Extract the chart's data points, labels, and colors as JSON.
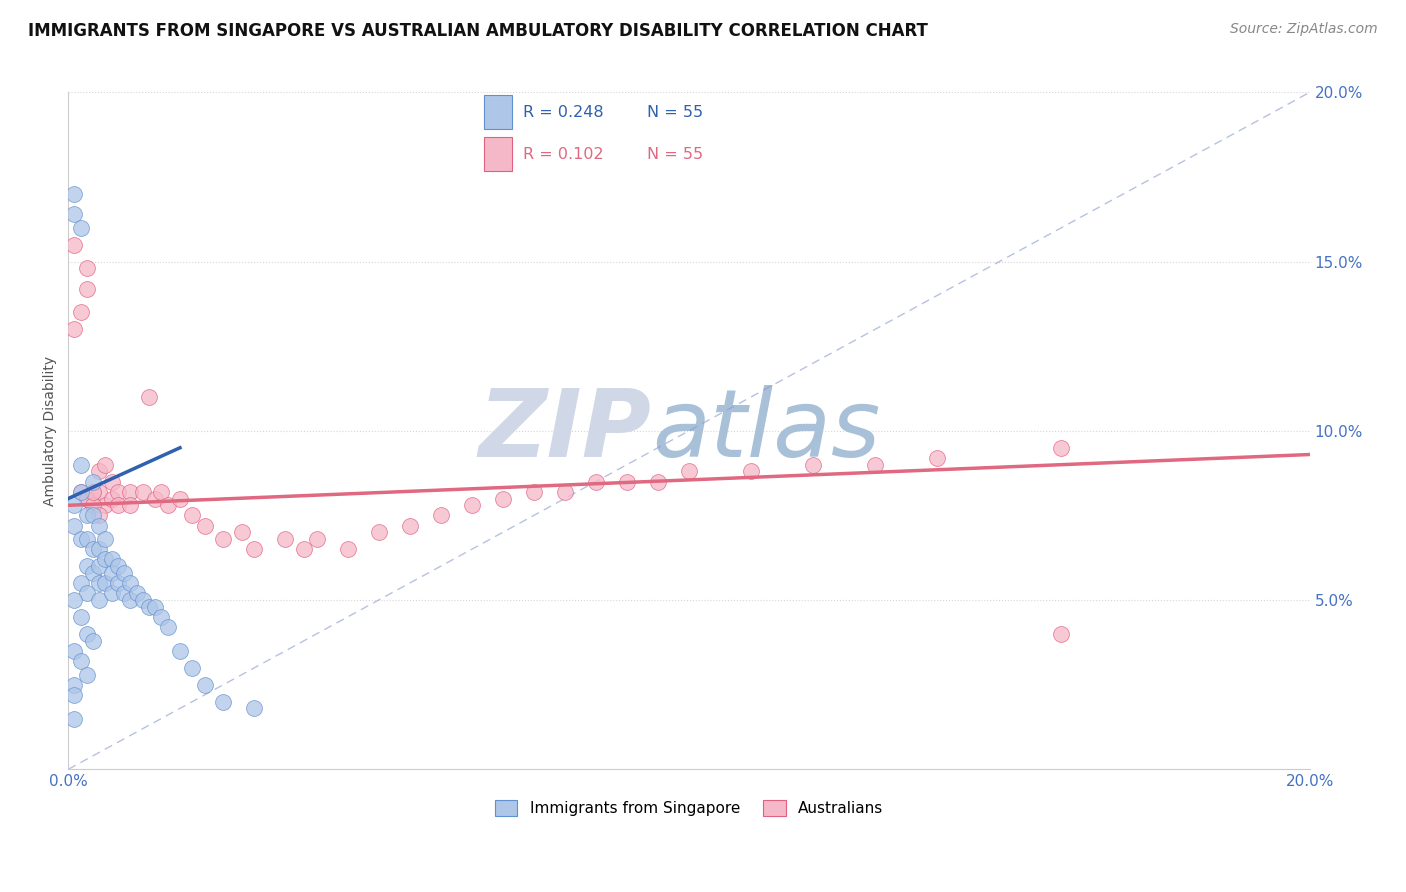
{
  "title": "IMMIGRANTS FROM SINGAPORE VS AUSTRALIAN AMBULATORY DISABILITY CORRELATION CHART",
  "source": "Source: ZipAtlas.com",
  "ylabel": "Ambulatory Disability",
  "xlim": [
    0.0,
    0.2
  ],
  "ylim": [
    0.0,
    0.2
  ],
  "legend_r_blue": "R = 0.248",
  "legend_n_blue": "N = 55",
  "legend_r_pink": "R = 0.102",
  "legend_n_pink": "N = 55",
  "legend_label_blue": "Immigrants from Singapore",
  "legend_label_pink": "Australians",
  "blue_color": "#aec6e8",
  "blue_edge_color": "#6090d0",
  "pink_color": "#f5b8c8",
  "pink_edge_color": "#e06080",
  "trend_blue_color": "#3060b0",
  "trend_pink_color": "#e06880",
  "diagonal_color": "#8899cc",
  "blue_scatter_x": [
    0.001,
    0.001,
    0.001,
    0.001,
    0.002,
    0.002,
    0.002,
    0.002,
    0.002,
    0.003,
    0.003,
    0.003,
    0.003,
    0.004,
    0.004,
    0.004,
    0.004,
    0.005,
    0.005,
    0.005,
    0.005,
    0.005,
    0.006,
    0.006,
    0.006,
    0.007,
    0.007,
    0.007,
    0.008,
    0.008,
    0.009,
    0.009,
    0.01,
    0.01,
    0.011,
    0.012,
    0.013,
    0.014,
    0.015,
    0.016,
    0.018,
    0.02,
    0.022,
    0.025,
    0.03,
    0.001,
    0.002,
    0.003,
    0.004,
    0.001,
    0.002,
    0.003,
    0.001,
    0.001,
    0.001
  ],
  "blue_scatter_y": [
    0.17,
    0.164,
    0.078,
    0.072,
    0.16,
    0.09,
    0.082,
    0.068,
    0.055,
    0.075,
    0.068,
    0.06,
    0.052,
    0.085,
    0.075,
    0.065,
    0.058,
    0.072,
    0.065,
    0.06,
    0.055,
    0.05,
    0.068,
    0.062,
    0.055,
    0.062,
    0.058,
    0.052,
    0.06,
    0.055,
    0.058,
    0.052,
    0.055,
    0.05,
    0.052,
    0.05,
    0.048,
    0.048,
    0.045,
    0.042,
    0.035,
    0.03,
    0.025,
    0.02,
    0.018,
    0.05,
    0.045,
    0.04,
    0.038,
    0.035,
    0.032,
    0.028,
    0.025,
    0.022,
    0.015
  ],
  "pink_scatter_x": [
    0.001,
    0.001,
    0.002,
    0.002,
    0.003,
    0.003,
    0.003,
    0.004,
    0.004,
    0.005,
    0.005,
    0.006,
    0.006,
    0.007,
    0.007,
    0.008,
    0.008,
    0.01,
    0.01,
    0.012,
    0.013,
    0.014,
    0.015,
    0.016,
    0.018,
    0.02,
    0.022,
    0.025,
    0.028,
    0.03,
    0.035,
    0.038,
    0.04,
    0.045,
    0.05,
    0.055,
    0.06,
    0.065,
    0.07,
    0.075,
    0.08,
    0.085,
    0.09,
    0.095,
    0.1,
    0.11,
    0.12,
    0.13,
    0.14,
    0.16,
    0.003,
    0.004,
    0.005,
    0.004,
    0.16
  ],
  "pink_scatter_y": [
    0.13,
    0.155,
    0.135,
    0.082,
    0.148,
    0.142,
    0.08,
    0.082,
    0.078,
    0.088,
    0.082,
    0.09,
    0.078,
    0.085,
    0.08,
    0.082,
    0.078,
    0.082,
    0.078,
    0.082,
    0.11,
    0.08,
    0.082,
    0.078,
    0.08,
    0.075,
    0.072,
    0.068,
    0.07,
    0.065,
    0.068,
    0.065,
    0.068,
    0.065,
    0.07,
    0.072,
    0.075,
    0.078,
    0.08,
    0.082,
    0.082,
    0.085,
    0.085,
    0.085,
    0.088,
    0.088,
    0.09,
    0.09,
    0.092,
    0.095,
    0.08,
    0.078,
    0.075,
    0.082,
    0.04
  ],
  "blue_trend_x": [
    0.0,
    0.018
  ],
  "blue_trend_y": [
    0.08,
    0.095
  ],
  "pink_trend_x": [
    0.0,
    0.2
  ],
  "pink_trend_y": [
    0.078,
    0.093
  ],
  "background_color": "#ffffff",
  "watermark_zip": "ZIP",
  "watermark_atlas": "atlas",
  "watermark_zip_color": "#d0d8e8",
  "watermark_atlas_color": "#a8c0d8"
}
